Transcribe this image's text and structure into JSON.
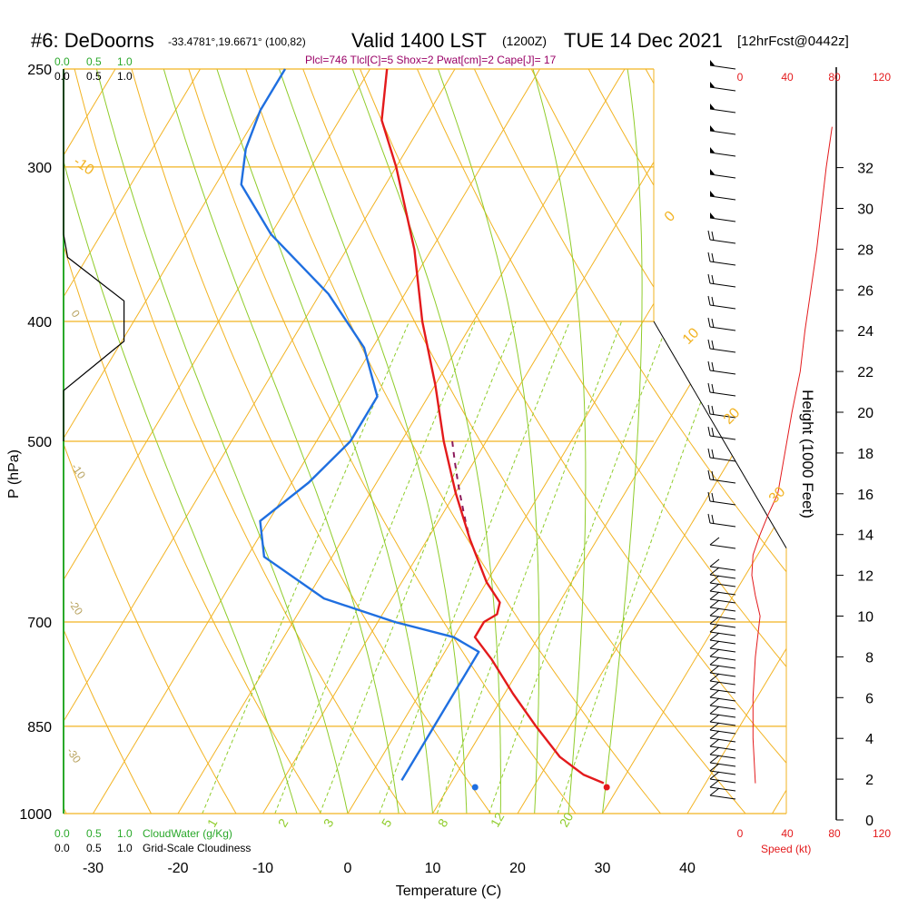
{
  "header": {
    "site": "#6: DeDoorns",
    "coords": "-33.4781°,19.6671° (100,82)",
    "valid": "Valid 1400 LST",
    "utc": "(1200Z)",
    "date": "TUE 14 Dec 2021",
    "forecast": "[12hrFcst@0442z]",
    "indices": "Plcl=746 Tlcl[C]=5 Shox=2 Pwat[cm]=2 Cape[J]= 17"
  },
  "labels": {
    "p_axis": "P (hPa)",
    "t_axis": "Temperature (C)",
    "height_axis": "Height (1000 Feet)",
    "speed_axis": "Speed (kt)",
    "cloudwater": "CloudWater (g/Kg)",
    "cloudiness": "Grid-Scale Cloudiness",
    "cw_scale": [
      "0.0",
      "0.5",
      "1.0"
    ],
    "cl_scale": [
      "0.0",
      "0.5",
      "1.0"
    ]
  },
  "colors": {
    "temperature": "#e31a1c",
    "dewpoint": "#1f6fe0",
    "isobar": "#f2b322",
    "dry_adiabat": "#f2b322",
    "moist_adiabat": "#8fcc2a",
    "mixing_ratio": "#8fcc2a",
    "cloudwater": "#2aa82a",
    "parcel": "#8b1a5a",
    "speed": "#e31a1c",
    "indices_text": "#990066"
  },
  "chart_data": {
    "type": "skew-t",
    "x_ticks": [
      "-30",
      "-20",
      "-10",
      "0",
      "10",
      "20",
      "30",
      "40"
    ],
    "p_ticks": [
      "250",
      "300",
      "400",
      "500",
      "700",
      "850",
      "1000"
    ],
    "height_ticks": [
      "0",
      "2",
      "4",
      "6",
      "8",
      "10",
      "12",
      "14",
      "16",
      "18",
      "20",
      "22",
      "24",
      "26",
      "28",
      "30",
      "32"
    ],
    "speed_ticks": [
      "0",
      "40",
      "80",
      "120"
    ],
    "dry_adiabat_labels": [
      "-10",
      "0",
      "10",
      "20",
      "30"
    ],
    "moist_adiabat_labels": [
      "0",
      "-10",
      "-20",
      "-30",
      "0",
      "10",
      "20",
      "30"
    ],
    "mixing_ratio_labels": [
      "1",
      "2",
      "3",
      "5",
      "8",
      "12",
      "20"
    ],
    "temperature": [
      {
        "p": 250,
        "t": -48
      },
      {
        "p": 275,
        "t": -45
      },
      {
        "p": 300,
        "t": -40
      },
      {
        "p": 350,
        "t": -32
      },
      {
        "p": 400,
        "t": -26
      },
      {
        "p": 450,
        "t": -20
      },
      {
        "p": 500,
        "t": -15
      },
      {
        "p": 550,
        "t": -10
      },
      {
        "p": 600,
        "t": -5
      },
      {
        "p": 650,
        "t": 0
      },
      {
        "p": 675,
        "t": 3
      },
      {
        "p": 690,
        "t": 3.5
      },
      {
        "p": 700,
        "t": 2.5
      },
      {
        "p": 720,
        "t": 2.5
      },
      {
        "p": 750,
        "t": 6
      },
      {
        "p": 800,
        "t": 11
      },
      {
        "p": 850,
        "t": 16
      },
      {
        "p": 900,
        "t": 21
      },
      {
        "p": 930,
        "t": 25
      },
      {
        "p": 945,
        "t": 28
      }
    ],
    "dewpoint": [
      {
        "p": 250,
        "t": -60
      },
      {
        "p": 270,
        "t": -60
      },
      {
        "p": 290,
        "t": -59
      },
      {
        "p": 310,
        "t": -57
      },
      {
        "p": 340,
        "t": -50
      },
      {
        "p": 380,
        "t": -39
      },
      {
        "p": 420,
        "t": -31
      },
      {
        "p": 460,
        "t": -26
      },
      {
        "p": 500,
        "t": -26
      },
      {
        "p": 540,
        "t": -28
      },
      {
        "p": 580,
        "t": -31
      },
      {
        "p": 620,
        "t": -28
      },
      {
        "p": 670,
        "t": -18
      },
      {
        "p": 700,
        "t": -8
      },
      {
        "p": 720,
        "t": 0
      },
      {
        "p": 740,
        "t": 4
      },
      {
        "p": 800,
        "t": 4
      },
      {
        "p": 850,
        "t": 4
      },
      {
        "p": 900,
        "t": 4
      },
      {
        "p": 940,
        "t": 4
      }
    ],
    "surface_temp": 30.5,
    "surface_dewpoint": 15,
    "cloudiness": [
      {
        "p": 340,
        "v": 0.0
      },
      {
        "p": 355,
        "v": 0.05
      },
      {
        "p": 385,
        "v": 0.74
      },
      {
        "p": 415,
        "v": 0.74
      },
      {
        "p": 455,
        "v": 0.0
      }
    ],
    "wind_speed_kt": [
      {
        "h": 1.8,
        "s": 13
      },
      {
        "h": 4,
        "s": 11
      },
      {
        "h": 6,
        "s": 11
      },
      {
        "h": 8,
        "s": 13
      },
      {
        "h": 10,
        "s": 17
      },
      {
        "h": 11,
        "s": 13
      },
      {
        "h": 12,
        "s": 10
      },
      {
        "h": 13,
        "s": 11
      },
      {
        "h": 14,
        "s": 17
      },
      {
        "h": 15,
        "s": 24
      },
      {
        "h": 16,
        "s": 32
      },
      {
        "h": 18,
        "s": 38
      },
      {
        "h": 20,
        "s": 44
      },
      {
        "h": 22,
        "s": 51
      },
      {
        "h": 24,
        "s": 55
      },
      {
        "h": 26,
        "s": 60
      },
      {
        "h": 28,
        "s": 65
      },
      {
        "h": 30,
        "s": 69
      },
      {
        "h": 32,
        "s": 73
      },
      {
        "h": 34,
        "s": 78
      }
    ]
  }
}
